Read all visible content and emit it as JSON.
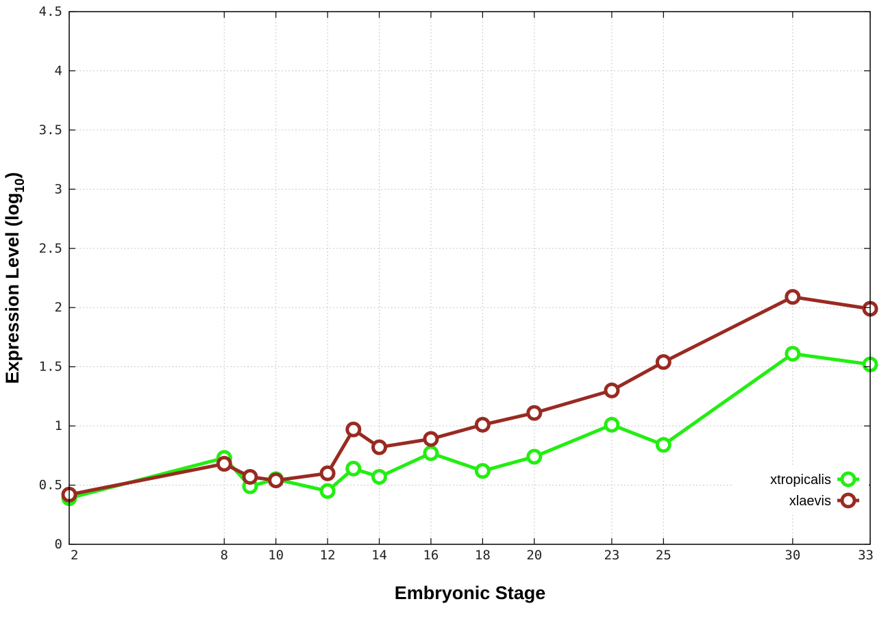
{
  "chart_data": {
    "type": "line",
    "xlabel": "Embryonic Stage",
    "ylabel_main": "Expression Level (log",
    "ylabel_sub": "10",
    "ylabel_end": ")",
    "ylabel": "Expression Level (log10)",
    "x_ticks": [
      "2",
      "8",
      "10",
      "12",
      "14",
      "16",
      "18",
      "20",
      "23",
      "25",
      "30",
      "33"
    ],
    "y_ticks": [
      "0",
      "0.5",
      "1",
      "1.5",
      "2",
      "2.5",
      "3",
      "3.5",
      "4",
      "4.5"
    ],
    "xlim": [
      2,
      33
    ],
    "ylim": [
      0,
      4.5
    ],
    "grid": true,
    "legend_position": "bottom-right",
    "x": [
      2,
      8,
      9,
      10,
      12,
      13,
      14,
      16,
      18,
      20,
      23,
      25,
      30,
      33
    ],
    "series": [
      {
        "name": "xtropicalis",
        "color": "#22ee11",
        "values": [
          0.39,
          0.73,
          0.49,
          0.55,
          0.45,
          0.64,
          0.57,
          0.77,
          0.62,
          0.74,
          1.01,
          0.84,
          1.61,
          1.52
        ]
      },
      {
        "name": "xlaevis",
        "color": "#992a22",
        "values": [
          0.42,
          0.68,
          0.57,
          0.54,
          0.6,
          0.97,
          0.82,
          0.89,
          1.01,
          1.11,
          1.3,
          1.54,
          2.09,
          1.99
        ]
      }
    ]
  }
}
